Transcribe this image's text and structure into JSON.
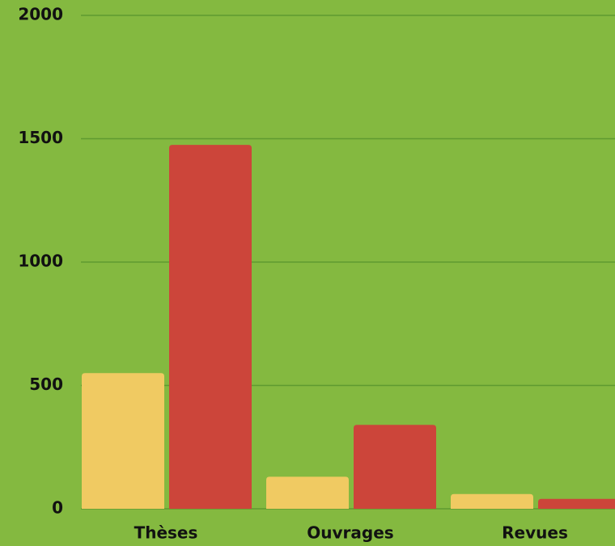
{
  "chart_data": {
    "type": "bar",
    "categories": [
      "Thèses",
      "Ouvrages",
      "Revues"
    ],
    "series": [
      {
        "color": "#f0ca62",
        "values": [
          550,
          130,
          60
        ]
      },
      {
        "color": "#cc453a",
        "values": [
          1475,
          340,
          40
        ]
      }
    ],
    "ylim": [
      0,
      2000
    ],
    "yticks": [
      0,
      500,
      1000,
      1500,
      2000
    ],
    "grid": true,
    "background": "#84b940",
    "grid_color": "#5f9a30"
  }
}
